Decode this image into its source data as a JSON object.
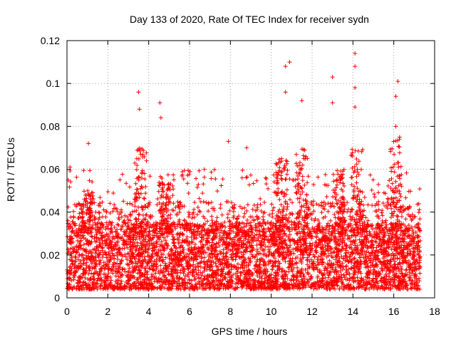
{
  "chart_data": {
    "type": "scatter",
    "title": "Day 133 of 2020, Rate Of TEC Index for receiver sydn",
    "xlabel": "GPS time / hours",
    "ylabel": "ROTI / TECUs",
    "xlim": [
      0,
      18
    ],
    "ylim": [
      0,
      0.12
    ],
    "x_ticks": [
      "0",
      "2",
      "4",
      "6",
      "8",
      "10",
      "12",
      "14",
      "16",
      "18"
    ],
    "y_ticks": [
      "0",
      "0.02",
      "0.04",
      "0.06",
      "0.08",
      "0.1",
      "0.12"
    ],
    "grid": true,
    "marker": "+",
    "color": "#ff0000",
    "series": [
      {
        "name": "ROTI",
        "x_range_observed": [
          0,
          17.3
        ],
        "baseline_range": [
          0.004,
          0.035
        ],
        "notable_peaks": [
          {
            "x": 0.15,
            "y": 0.061
          },
          {
            "x": 1.05,
            "y": 0.072
          },
          {
            "x": 3.5,
            "y": 0.096
          },
          {
            "x": 3.55,
            "y": 0.088
          },
          {
            "x": 4.55,
            "y": 0.091
          },
          {
            "x": 4.6,
            "y": 0.084
          },
          {
            "x": 7.9,
            "y": 0.073
          },
          {
            "x": 8.8,
            "y": 0.07
          },
          {
            "x": 10.7,
            "y": 0.108
          },
          {
            "x": 10.9,
            "y": 0.11
          },
          {
            "x": 10.7,
            "y": 0.096
          },
          {
            "x": 11.5,
            "y": 0.092
          },
          {
            "x": 13.0,
            "y": 0.103
          },
          {
            "x": 13.0,
            "y": 0.091
          },
          {
            "x": 14.1,
            "y": 0.114
          },
          {
            "x": 14.1,
            "y": 0.108
          },
          {
            "x": 14.1,
            "y": 0.098
          },
          {
            "x": 14.1,
            "y": 0.089
          },
          {
            "x": 16.2,
            "y": 0.101
          },
          {
            "x": 16.1,
            "y": 0.094
          },
          {
            "x": 16.1,
            "y": 0.08
          }
        ]
      }
    ]
  }
}
